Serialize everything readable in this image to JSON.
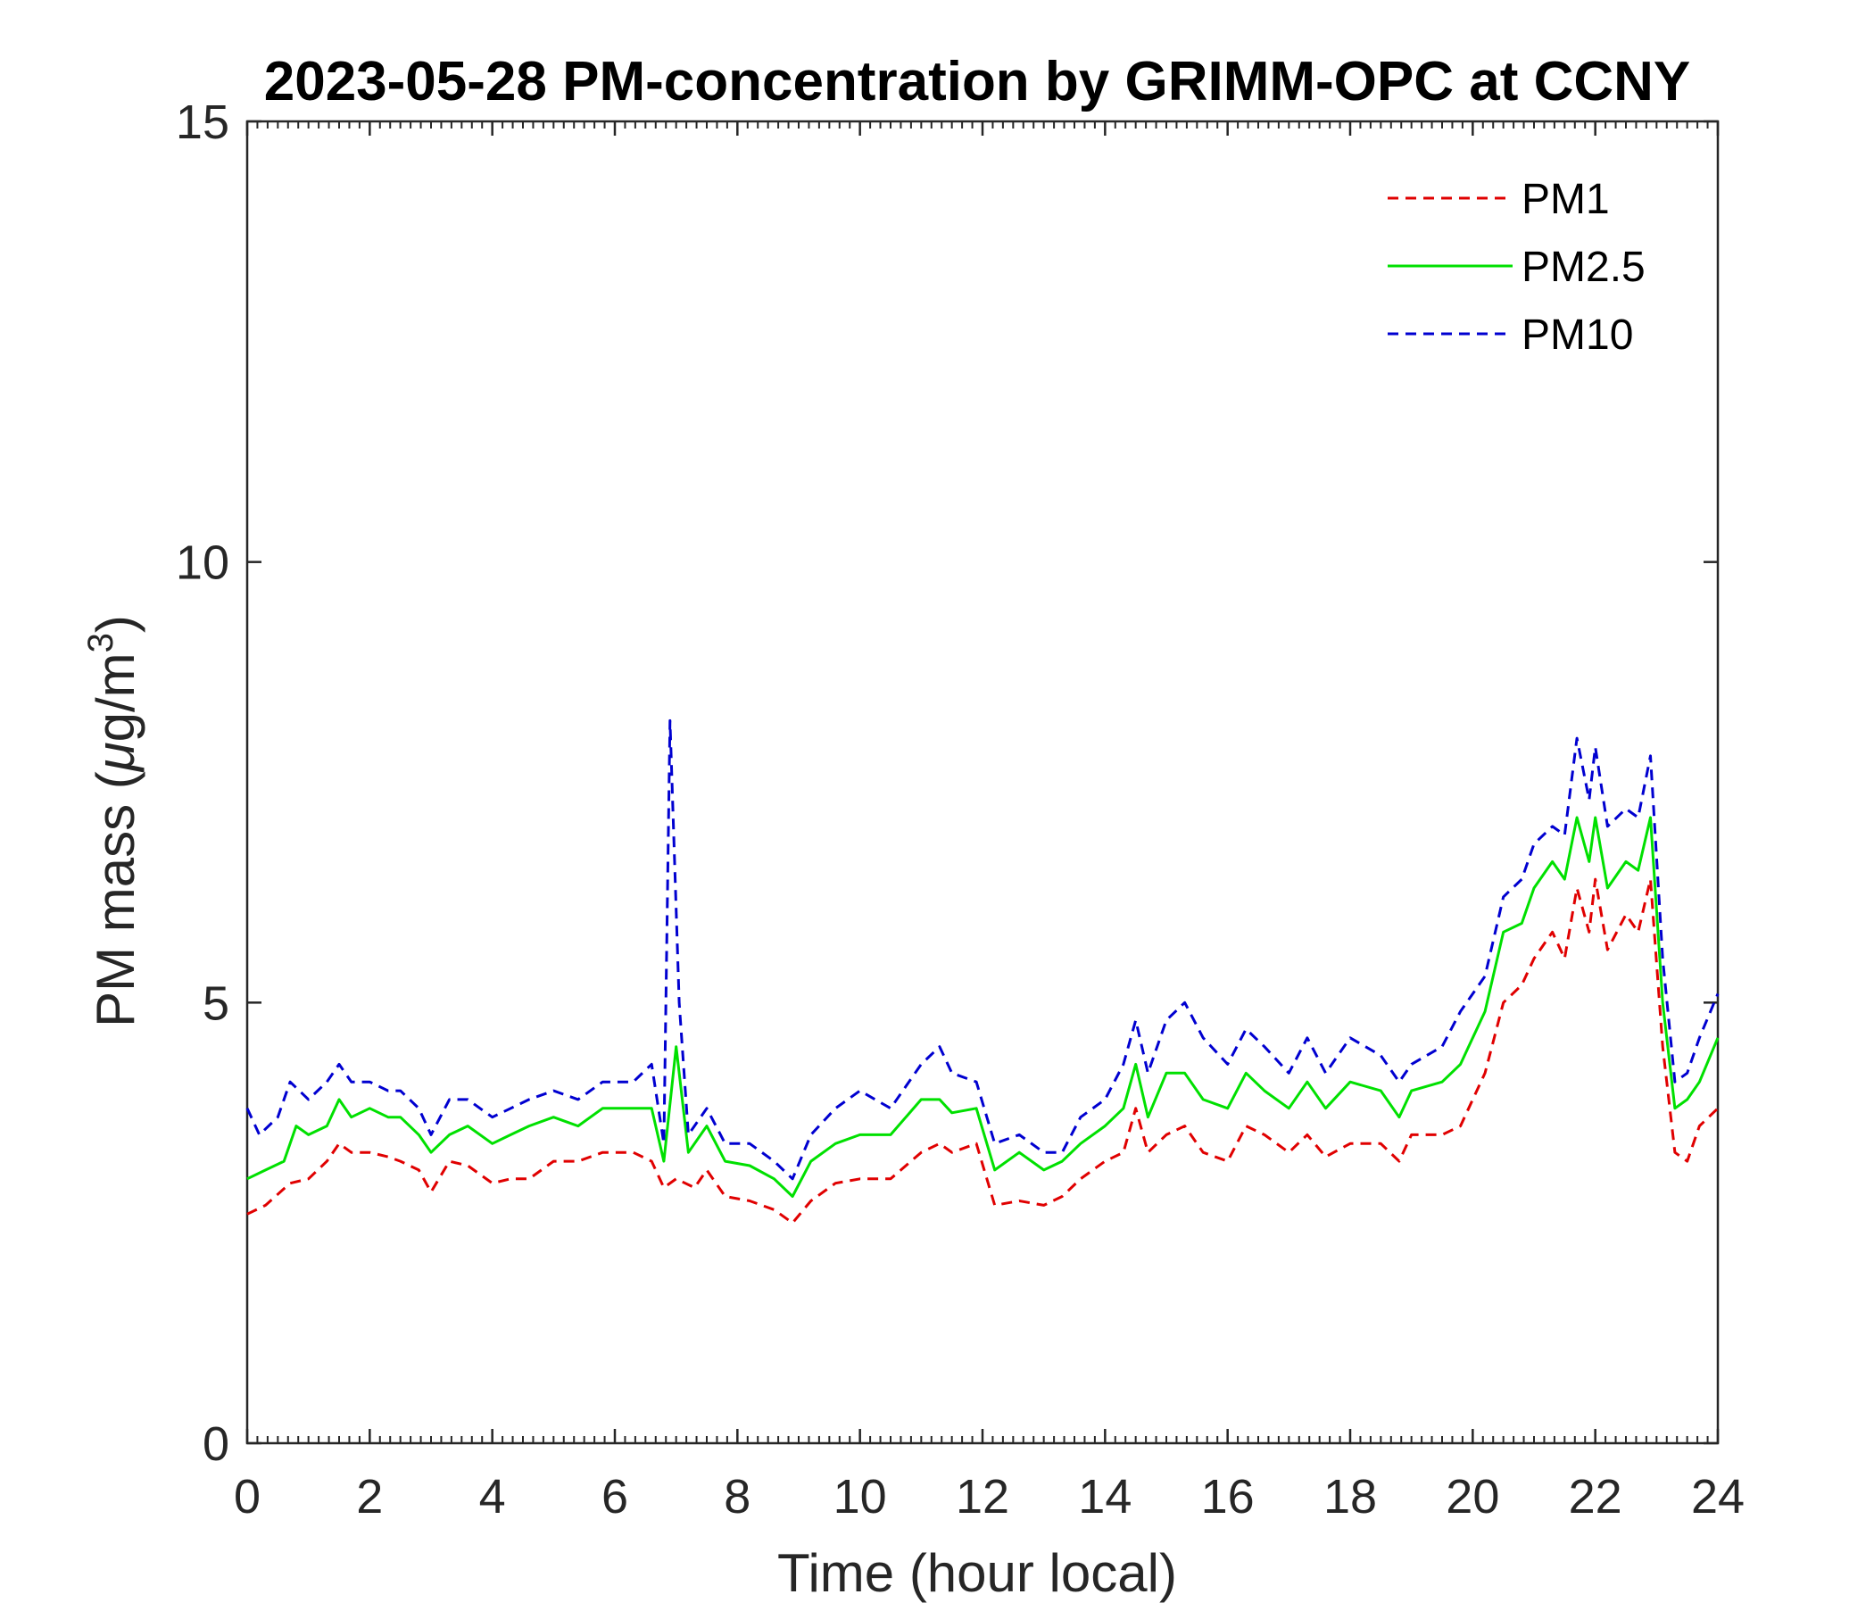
{
  "chart_data": {
    "type": "line",
    "title": "2023-05-28 PM-concentration by GRIMM-OPC at CCNY",
    "xlabel": "Time (hour local)",
    "ylabel_main": "PM mass (",
    "ylabel_mu": "μ",
    "ylabel_unit": "g/m",
    "ylabel_sup": "3",
    "ylabel_close": ")",
    "xlim": [
      0,
      24
    ],
    "ylim": [
      0,
      15
    ],
    "xticks": [
      0,
      2,
      4,
      6,
      8,
      10,
      12,
      14,
      16,
      18,
      20,
      22,
      24
    ],
    "xtick_labels": [
      "0",
      "2",
      "4",
      "6",
      "8",
      "10",
      "12",
      "14",
      "16",
      "18",
      "20",
      "22",
      "24"
    ],
    "yticks": [
      0,
      5,
      10,
      15
    ],
    "ytick_labels": [
      "0",
      "5",
      "10",
      "15"
    ],
    "grid": false,
    "legend_position": "top-right",
    "series": [
      {
        "name": "PM1",
        "color": "#e00000",
        "style": "dashed",
        "points": [
          [
            0,
            2.6
          ],
          [
            0.3,
            2.7
          ],
          [
            0.7,
            2.95
          ],
          [
            1.0,
            3.0
          ],
          [
            1.3,
            3.2
          ],
          [
            1.5,
            3.4
          ],
          [
            1.7,
            3.3
          ],
          [
            2.0,
            3.3
          ],
          [
            2.3,
            3.25
          ],
          [
            2.5,
            3.2
          ],
          [
            2.8,
            3.1
          ],
          [
            3.0,
            2.85
          ],
          [
            3.3,
            3.2
          ],
          [
            3.6,
            3.15
          ],
          [
            4.0,
            2.95
          ],
          [
            4.3,
            3.0
          ],
          [
            4.6,
            3.0
          ],
          [
            5.0,
            3.2
          ],
          [
            5.4,
            3.2
          ],
          [
            5.8,
            3.3
          ],
          [
            6.3,
            3.3
          ],
          [
            6.6,
            3.2
          ],
          [
            6.8,
            2.9
          ],
          [
            7.0,
            3.0
          ],
          [
            7.3,
            2.9
          ],
          [
            7.5,
            3.1
          ],
          [
            7.8,
            2.8
          ],
          [
            8.2,
            2.75
          ],
          [
            8.6,
            2.65
          ],
          [
            8.9,
            2.5
          ],
          [
            9.2,
            2.75
          ],
          [
            9.6,
            2.95
          ],
          [
            10.0,
            3.0
          ],
          [
            10.5,
            3.0
          ],
          [
            11.0,
            3.3
          ],
          [
            11.3,
            3.4
          ],
          [
            11.5,
            3.3
          ],
          [
            11.9,
            3.4
          ],
          [
            12.2,
            2.7
          ],
          [
            12.6,
            2.75
          ],
          [
            13.0,
            2.7
          ],
          [
            13.3,
            2.8
          ],
          [
            13.6,
            3.0
          ],
          [
            14.0,
            3.2
          ],
          [
            14.3,
            3.3
          ],
          [
            14.5,
            3.8
          ],
          [
            14.7,
            3.3
          ],
          [
            15.0,
            3.5
          ],
          [
            15.3,
            3.6
          ],
          [
            15.6,
            3.3
          ],
          [
            16.0,
            3.2
          ],
          [
            16.3,
            3.6
          ],
          [
            16.6,
            3.5
          ],
          [
            17.0,
            3.3
          ],
          [
            17.3,
            3.5
          ],
          [
            17.6,
            3.25
          ],
          [
            18.0,
            3.4
          ],
          [
            18.5,
            3.4
          ],
          [
            18.8,
            3.2
          ],
          [
            19.0,
            3.5
          ],
          [
            19.5,
            3.5
          ],
          [
            19.8,
            3.6
          ],
          [
            20.2,
            4.2
          ],
          [
            20.5,
            5.0
          ],
          [
            20.8,
            5.2
          ],
          [
            21.0,
            5.5
          ],
          [
            21.3,
            5.8
          ],
          [
            21.5,
            5.5
          ],
          [
            21.7,
            6.3
          ],
          [
            21.9,
            5.8
          ],
          [
            22.0,
            6.4
          ],
          [
            22.2,
            5.6
          ],
          [
            22.5,
            6.0
          ],
          [
            22.7,
            5.8
          ],
          [
            22.9,
            6.4
          ],
          [
            23.1,
            4.5
          ],
          [
            23.3,
            3.3
          ],
          [
            23.5,
            3.2
          ],
          [
            23.7,
            3.6
          ],
          [
            24.0,
            3.8
          ]
        ]
      },
      {
        "name": "PM2.5",
        "color": "#00e000",
        "style": "solid",
        "points": [
          [
            0,
            3.0
          ],
          [
            0.3,
            3.1
          ],
          [
            0.6,
            3.2
          ],
          [
            0.8,
            3.6
          ],
          [
            1.0,
            3.5
          ],
          [
            1.3,
            3.6
          ],
          [
            1.5,
            3.9
          ],
          [
            1.7,
            3.7
          ],
          [
            2.0,
            3.8
          ],
          [
            2.3,
            3.7
          ],
          [
            2.5,
            3.7
          ],
          [
            2.8,
            3.5
          ],
          [
            3.0,
            3.3
          ],
          [
            3.3,
            3.5
          ],
          [
            3.6,
            3.6
          ],
          [
            4.0,
            3.4
          ],
          [
            4.3,
            3.5
          ],
          [
            4.6,
            3.6
          ],
          [
            5.0,
            3.7
          ],
          [
            5.4,
            3.6
          ],
          [
            5.8,
            3.8
          ],
          [
            6.3,
            3.8
          ],
          [
            6.6,
            3.8
          ],
          [
            6.8,
            3.2
          ],
          [
            7.0,
            4.5
          ],
          [
            7.2,
            3.3
          ],
          [
            7.5,
            3.6
          ],
          [
            7.8,
            3.2
          ],
          [
            8.2,
            3.15
          ],
          [
            8.6,
            3.0
          ],
          [
            8.9,
            2.8
          ],
          [
            9.2,
            3.2
          ],
          [
            9.6,
            3.4
          ],
          [
            10.0,
            3.5
          ],
          [
            10.5,
            3.5
          ],
          [
            11.0,
            3.9
          ],
          [
            11.3,
            3.9
          ],
          [
            11.5,
            3.75
          ],
          [
            11.9,
            3.8
          ],
          [
            12.2,
            3.1
          ],
          [
            12.6,
            3.3
          ],
          [
            13.0,
            3.1
          ],
          [
            13.3,
            3.2
          ],
          [
            13.6,
            3.4
          ],
          [
            14.0,
            3.6
          ],
          [
            14.3,
            3.8
          ],
          [
            14.5,
            4.3
          ],
          [
            14.7,
            3.7
          ],
          [
            15.0,
            4.2
          ],
          [
            15.3,
            4.2
          ],
          [
            15.6,
            3.9
          ],
          [
            16.0,
            3.8
          ],
          [
            16.3,
            4.2
          ],
          [
            16.6,
            4.0
          ],
          [
            17.0,
            3.8
          ],
          [
            17.3,
            4.1
          ],
          [
            17.6,
            3.8
          ],
          [
            18.0,
            4.1
          ],
          [
            18.5,
            4.0
          ],
          [
            18.8,
            3.7
          ],
          [
            19.0,
            4.0
          ],
          [
            19.5,
            4.1
          ],
          [
            19.8,
            4.3
          ],
          [
            20.2,
            4.9
          ],
          [
            20.5,
            5.8
          ],
          [
            20.8,
            5.9
          ],
          [
            21.0,
            6.3
          ],
          [
            21.3,
            6.6
          ],
          [
            21.5,
            6.4
          ],
          [
            21.7,
            7.1
          ],
          [
            21.9,
            6.6
          ],
          [
            22.0,
            7.1
          ],
          [
            22.2,
            6.3
          ],
          [
            22.5,
            6.6
          ],
          [
            22.7,
            6.5
          ],
          [
            22.9,
            7.1
          ],
          [
            23.1,
            5.0
          ],
          [
            23.3,
            3.8
          ],
          [
            23.5,
            3.9
          ],
          [
            23.7,
            4.1
          ],
          [
            24.0,
            4.6
          ]
        ]
      },
      {
        "name": "PM10",
        "color": "#0000d0",
        "style": "dashed",
        "points": [
          [
            0,
            3.8
          ],
          [
            0.2,
            3.5
          ],
          [
            0.5,
            3.7
          ],
          [
            0.7,
            4.1
          ],
          [
            1.0,
            3.9
          ],
          [
            1.3,
            4.1
          ],
          [
            1.5,
            4.3
          ],
          [
            1.7,
            4.1
          ],
          [
            2.0,
            4.1
          ],
          [
            2.3,
            4.0
          ],
          [
            2.5,
            4.0
          ],
          [
            2.8,
            3.8
          ],
          [
            3.0,
            3.5
          ],
          [
            3.3,
            3.9
          ],
          [
            3.6,
            3.9
          ],
          [
            4.0,
            3.7
          ],
          [
            4.3,
            3.8
          ],
          [
            4.6,
            3.9
          ],
          [
            5.0,
            4.0
          ],
          [
            5.4,
            3.9
          ],
          [
            5.8,
            4.1
          ],
          [
            6.3,
            4.1
          ],
          [
            6.6,
            4.3
          ],
          [
            6.8,
            3.4
          ],
          [
            6.9,
            8.2
          ],
          [
            7.05,
            5.0
          ],
          [
            7.2,
            3.5
          ],
          [
            7.5,
            3.8
          ],
          [
            7.8,
            3.4
          ],
          [
            8.2,
            3.4
          ],
          [
            8.6,
            3.2
          ],
          [
            8.9,
            3.0
          ],
          [
            9.2,
            3.5
          ],
          [
            9.6,
            3.8
          ],
          [
            10.0,
            4.0
          ],
          [
            10.5,
            3.8
          ],
          [
            11.0,
            4.3
          ],
          [
            11.3,
            4.5
          ],
          [
            11.5,
            4.2
          ],
          [
            11.9,
            4.1
          ],
          [
            12.2,
            3.4
          ],
          [
            12.6,
            3.5
          ],
          [
            13.0,
            3.3
          ],
          [
            13.3,
            3.3
          ],
          [
            13.6,
            3.7
          ],
          [
            14.0,
            3.9
          ],
          [
            14.3,
            4.3
          ],
          [
            14.5,
            4.8
          ],
          [
            14.7,
            4.2
          ],
          [
            15.0,
            4.8
          ],
          [
            15.3,
            5.0
          ],
          [
            15.6,
            4.6
          ],
          [
            16.0,
            4.3
          ],
          [
            16.3,
            4.7
          ],
          [
            16.6,
            4.5
          ],
          [
            17.0,
            4.2
          ],
          [
            17.3,
            4.6
          ],
          [
            17.6,
            4.2
          ],
          [
            18.0,
            4.6
          ],
          [
            18.5,
            4.4
          ],
          [
            18.8,
            4.1
          ],
          [
            19.0,
            4.3
          ],
          [
            19.5,
            4.5
          ],
          [
            19.8,
            4.9
          ],
          [
            20.2,
            5.3
          ],
          [
            20.5,
            6.2
          ],
          [
            20.8,
            6.4
          ],
          [
            21.0,
            6.8
          ],
          [
            21.3,
            7.0
          ],
          [
            21.5,
            6.9
          ],
          [
            21.7,
            8.0
          ],
          [
            21.9,
            7.3
          ],
          [
            22.0,
            7.9
          ],
          [
            22.2,
            7.0
          ],
          [
            22.5,
            7.2
          ],
          [
            22.7,
            7.1
          ],
          [
            22.9,
            7.8
          ],
          [
            23.1,
            5.5
          ],
          [
            23.3,
            4.1
          ],
          [
            23.5,
            4.2
          ],
          [
            23.7,
            4.6
          ],
          [
            24.0,
            5.1
          ]
        ]
      }
    ]
  }
}
